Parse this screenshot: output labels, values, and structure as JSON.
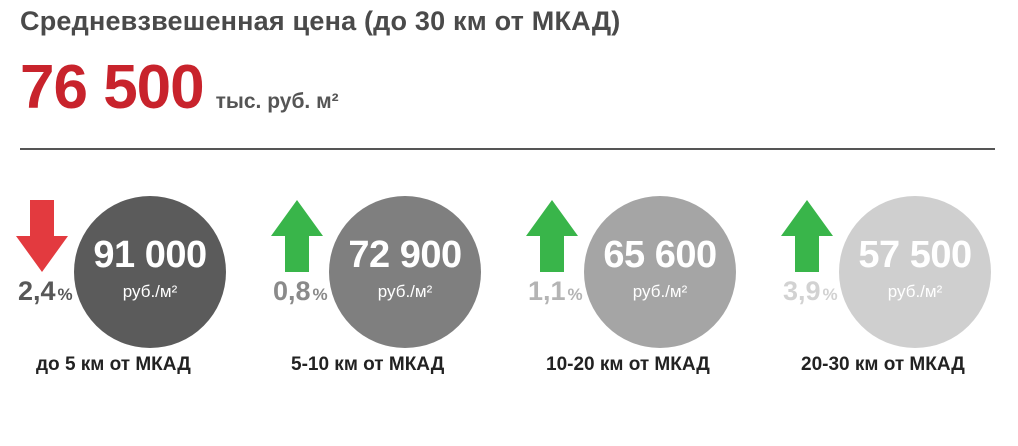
{
  "title": "Средневзвешенная цена (до 30 км от МКАД)",
  "headline": {
    "value": "76 500",
    "unit": "тыс. руб. м²"
  },
  "zones": [
    {
      "label": "до 5 км от МКАД",
      "price": "91 000",
      "unit": "руб./м²",
      "change_value": "2,4",
      "change_sign": "%",
      "direction": "down",
      "arrow_color": "#e33a3f",
      "circle_color": "#5b5b5b",
      "pct_color": "#585858"
    },
    {
      "label": "5-10 км от МКАД",
      "price": "72 900",
      "unit": "руб./м²",
      "change_value": "0,8",
      "change_sign": "%",
      "direction": "up",
      "arrow_color": "#39b54a",
      "circle_color": "#7f7f7f",
      "pct_color": "#8a8a8a"
    },
    {
      "label": "10-20 км от МКАД",
      "price": "65 600",
      "unit": "руб./м²",
      "change_value": "1,1",
      "change_sign": "%",
      "direction": "up",
      "arrow_color": "#39b54a",
      "circle_color": "#a5a5a5",
      "pct_color": "#b4b4b4"
    },
    {
      "label": "20-30 км от МКАД",
      "price": "57 500",
      "unit": "руб./м²",
      "change_value": "3,9",
      "change_sign": "%",
      "direction": "up",
      "arrow_color": "#39b54a",
      "circle_color": "#cfcfcf",
      "pct_color": "#d2d2d2"
    }
  ]
}
